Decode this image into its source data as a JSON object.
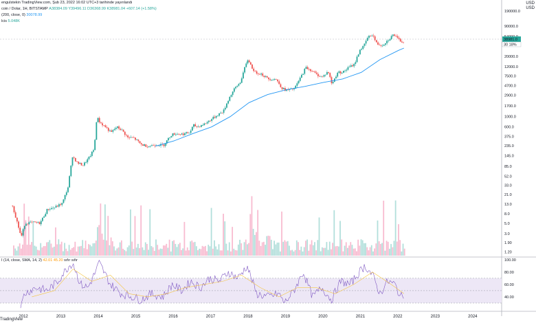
{
  "header": {
    "publisher": "engulstekin TradingView.com, Şub 23, 2022 16:02 UTC+3 tarihinde yayınlandı",
    "symbol_line": "coin / Dolar, 1H, BITSTAMP",
    "ohlc": "A38384.09  Y39496.11  D36368.99  K38981.04  +607.14 (+1.58%)",
    "ema_label": "(200, close, 0)",
    "ema_value": "30078.99",
    "volume_label": "lcis",
    "volume_value": "5.048K",
    "rsi_label": "I (14, close, SMA, 14, 2)",
    "rsi_value": "42.01",
    "rsi_ma_value": "45.20",
    "rsi_suffix": "sıfır sıfır",
    "currency_top": "USD",
    "currency_bottom": "USD",
    "logo": "TradingView"
  },
  "colors": {
    "up": "#26a69a",
    "down": "#ef5350",
    "ema": "#2196f3",
    "rsi": "#7e57c2",
    "rsi_ma": "#f5c542",
    "rsi_band": "#ede7f6",
    "vol_up": "#b2dfdb",
    "vol_down": "#f8bbd0"
  },
  "chart_data": {
    "type": "line",
    "title": "",
    "scale": "log",
    "y_ticks": [
      "190000.0",
      "90000.0",
      "54000.0",
      "20000.0",
      "12000.0",
      "7500.0",
      "4700.0",
      "2900.0",
      "1700.0",
      "1000.0",
      "600.0",
      "375.0",
      "235.0",
      "145.0",
      "85.0",
      "52.0",
      "33.0",
      "21.0",
      "13.0",
      "8.0",
      "5.0",
      "3.0",
      "1.90",
      "1.20"
    ],
    "last_price_label": "38981.0",
    "ema_price_label": "30 18%",
    "x_ticks": [
      "2012",
      "2013",
      "2014",
      "2015",
      "2016",
      "2017",
      "2018",
      "2019",
      "2020",
      "2021",
      "2022",
      "2023",
      "2024"
    ],
    "price_series": {
      "name": "BTC/USD",
      "x": [
        2011.67,
        2011.8,
        2011.9,
        2012.0,
        2012.2,
        2012.4,
        2012.6,
        2012.8,
        2013.0,
        2013.15,
        2013.27,
        2013.4,
        2013.55,
        2013.7,
        2013.85,
        2013.92,
        2014.0,
        2014.15,
        2014.3,
        2014.45,
        2014.6,
        2014.75,
        2014.9,
        2015.0,
        2015.1,
        2015.3,
        2015.5,
        2015.7,
        2015.9,
        2016.0,
        2016.2,
        2016.4,
        2016.5,
        2016.6,
        2016.8,
        2017.0,
        2017.15,
        2017.3,
        2017.45,
        2017.6,
        2017.75,
        2017.85,
        2017.96,
        2018.05,
        2018.15,
        2018.3,
        2018.5,
        2018.7,
        2018.88,
        2019.0,
        2019.2,
        2019.4,
        2019.5,
        2019.65,
        2019.8,
        2019.95,
        2020.1,
        2020.2,
        2020.35,
        2020.5,
        2020.65,
        2020.8,
        2020.95,
        2021.05,
        2021.15,
        2021.28,
        2021.4,
        2021.55,
        2021.7,
        2021.85,
        2021.95,
        2022.05,
        2022.14
      ],
      "y": [
        12.0,
        5.0,
        2.5,
        5.0,
        5.2,
        5.0,
        10.0,
        11.0,
        13.5,
        30.0,
        140.0,
        100.0,
        90.0,
        125.0,
        200.0,
        1000.0,
        750.0,
        600.0,
        450.0,
        600.0,
        500.0,
        350.0,
        350.0,
        300.0,
        250.0,
        230.0,
        250.0,
        240.0,
        400.0,
        430.0,
        420.0,
        450.0,
        650.0,
        600.0,
        700.0,
        900.0,
        1100.0,
        1300.0,
        2500.0,
        4000.0,
        5500.0,
        10000.0,
        17500.0,
        12000.0,
        9000.0,
        8500.0,
        6500.0,
        6500.0,
        4000.0,
        3700.0,
        4000.0,
        8000.0,
        11500.0,
        10000.0,
        8000.0,
        7200.0,
        9500.0,
        5000.0,
        9000.0,
        9200.0,
        11500.0,
        13500.0,
        28000.0,
        33000.0,
        50000.0,
        60000.0,
        37000.0,
        35000.0,
        45000.0,
        60000.0,
        48000.0,
        42000.0,
        38981.0
      ]
    },
    "ema_series": {
      "name": "EMA (200, close, 0)",
      "x": [
        2015.5,
        2016.0,
        2016.5,
        2017.0,
        2017.5,
        2018.0,
        2018.5,
        2019.0,
        2019.5,
        2020.0,
        2020.5,
        2021.0,
        2021.5,
        2022.0,
        2022.14
      ],
      "y": [
        230.0,
        300.0,
        430.0,
        600.0,
        1000.0,
        2000.0,
        3000.0,
        3800.0,
        4500.0,
        5500.0,
        6500.0,
        9000.0,
        17000.0,
        27000.0,
        30079.0
      ]
    },
    "rsi": {
      "y_ticks": [
        "100.00",
        "80.00",
        "60.00",
        "40.00"
      ],
      "upper_band": 70,
      "lower_band": 30,
      "mid": 50,
      "x": [
        2011.9,
        2012.0,
        2012.3,
        2012.6,
        2012.9,
        2013.0,
        2013.2,
        2013.3,
        2013.5,
        2013.7,
        2013.9,
        2014.0,
        2014.3,
        2014.6,
        2014.9,
        2015.1,
        2015.4,
        2015.7,
        2015.95,
        2016.2,
        2016.45,
        2016.7,
        2016.95,
        2017.2,
        2017.45,
        2017.7,
        2017.95,
        2018.2,
        2018.5,
        2018.8,
        2018.95,
        2019.2,
        2019.45,
        2019.7,
        2019.95,
        2020.2,
        2020.45,
        2020.7,
        2020.95,
        2021.1,
        2021.3,
        2021.5,
        2021.7,
        2021.9,
        2022.05,
        2022.14
      ],
      "y": [
        20.0,
        45.0,
        55.0,
        50.0,
        65.0,
        75.0,
        90.0,
        95.0,
        60.0,
        55.0,
        80.0,
        95.0,
        60.0,
        45.0,
        40.0,
        35.0,
        45.0,
        40.0,
        60.0,
        50.0,
        65.0,
        55.0,
        70.0,
        65.0,
        80.0,
        70.0,
        90.0,
        45.0,
        40.0,
        45.0,
        30.0,
        50.0,
        80.0,
        40.0,
        55.0,
        35.0,
        65.0,
        60.0,
        80.0,
        90.0,
        75.0,
        45.0,
        65.0,
        60.0,
        40.0,
        42.0
      ],
      "ma_x": [
        2012.2,
        2012.8,
        2013.3,
        2013.8,
        2014.3,
        2014.8,
        2015.3,
        2015.8,
        2016.3,
        2016.8,
        2017.3,
        2017.8,
        2018.3,
        2018.8,
        2019.3,
        2019.8,
        2020.3,
        2020.8,
        2021.3,
        2021.8,
        2022.14
      ],
      "ma_y": [
        40.0,
        50.0,
        85.0,
        65.0,
        75.0,
        45.0,
        40.0,
        45.0,
        55.0,
        60.0,
        65.0,
        75.0,
        55.0,
        40.0,
        55.0,
        55.0,
        45.0,
        60.0,
        80.0,
        60.0,
        45.2
      ]
    }
  }
}
